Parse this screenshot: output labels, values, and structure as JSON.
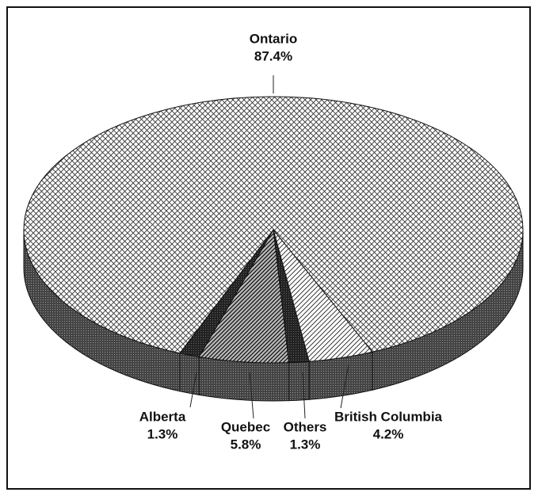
{
  "chart_data": {
    "type": "pie",
    "categories": [
      "Ontario",
      "British Columbia",
      "Others",
      "Quebec",
      "Alberta"
    ],
    "values": [
      87.4,
      4.2,
      1.3,
      5.8,
      1.3
    ],
    "value_labels": [
      "87.4%",
      "4.2%",
      "1.3%",
      "5.8%",
      "1.3%"
    ]
  }
}
